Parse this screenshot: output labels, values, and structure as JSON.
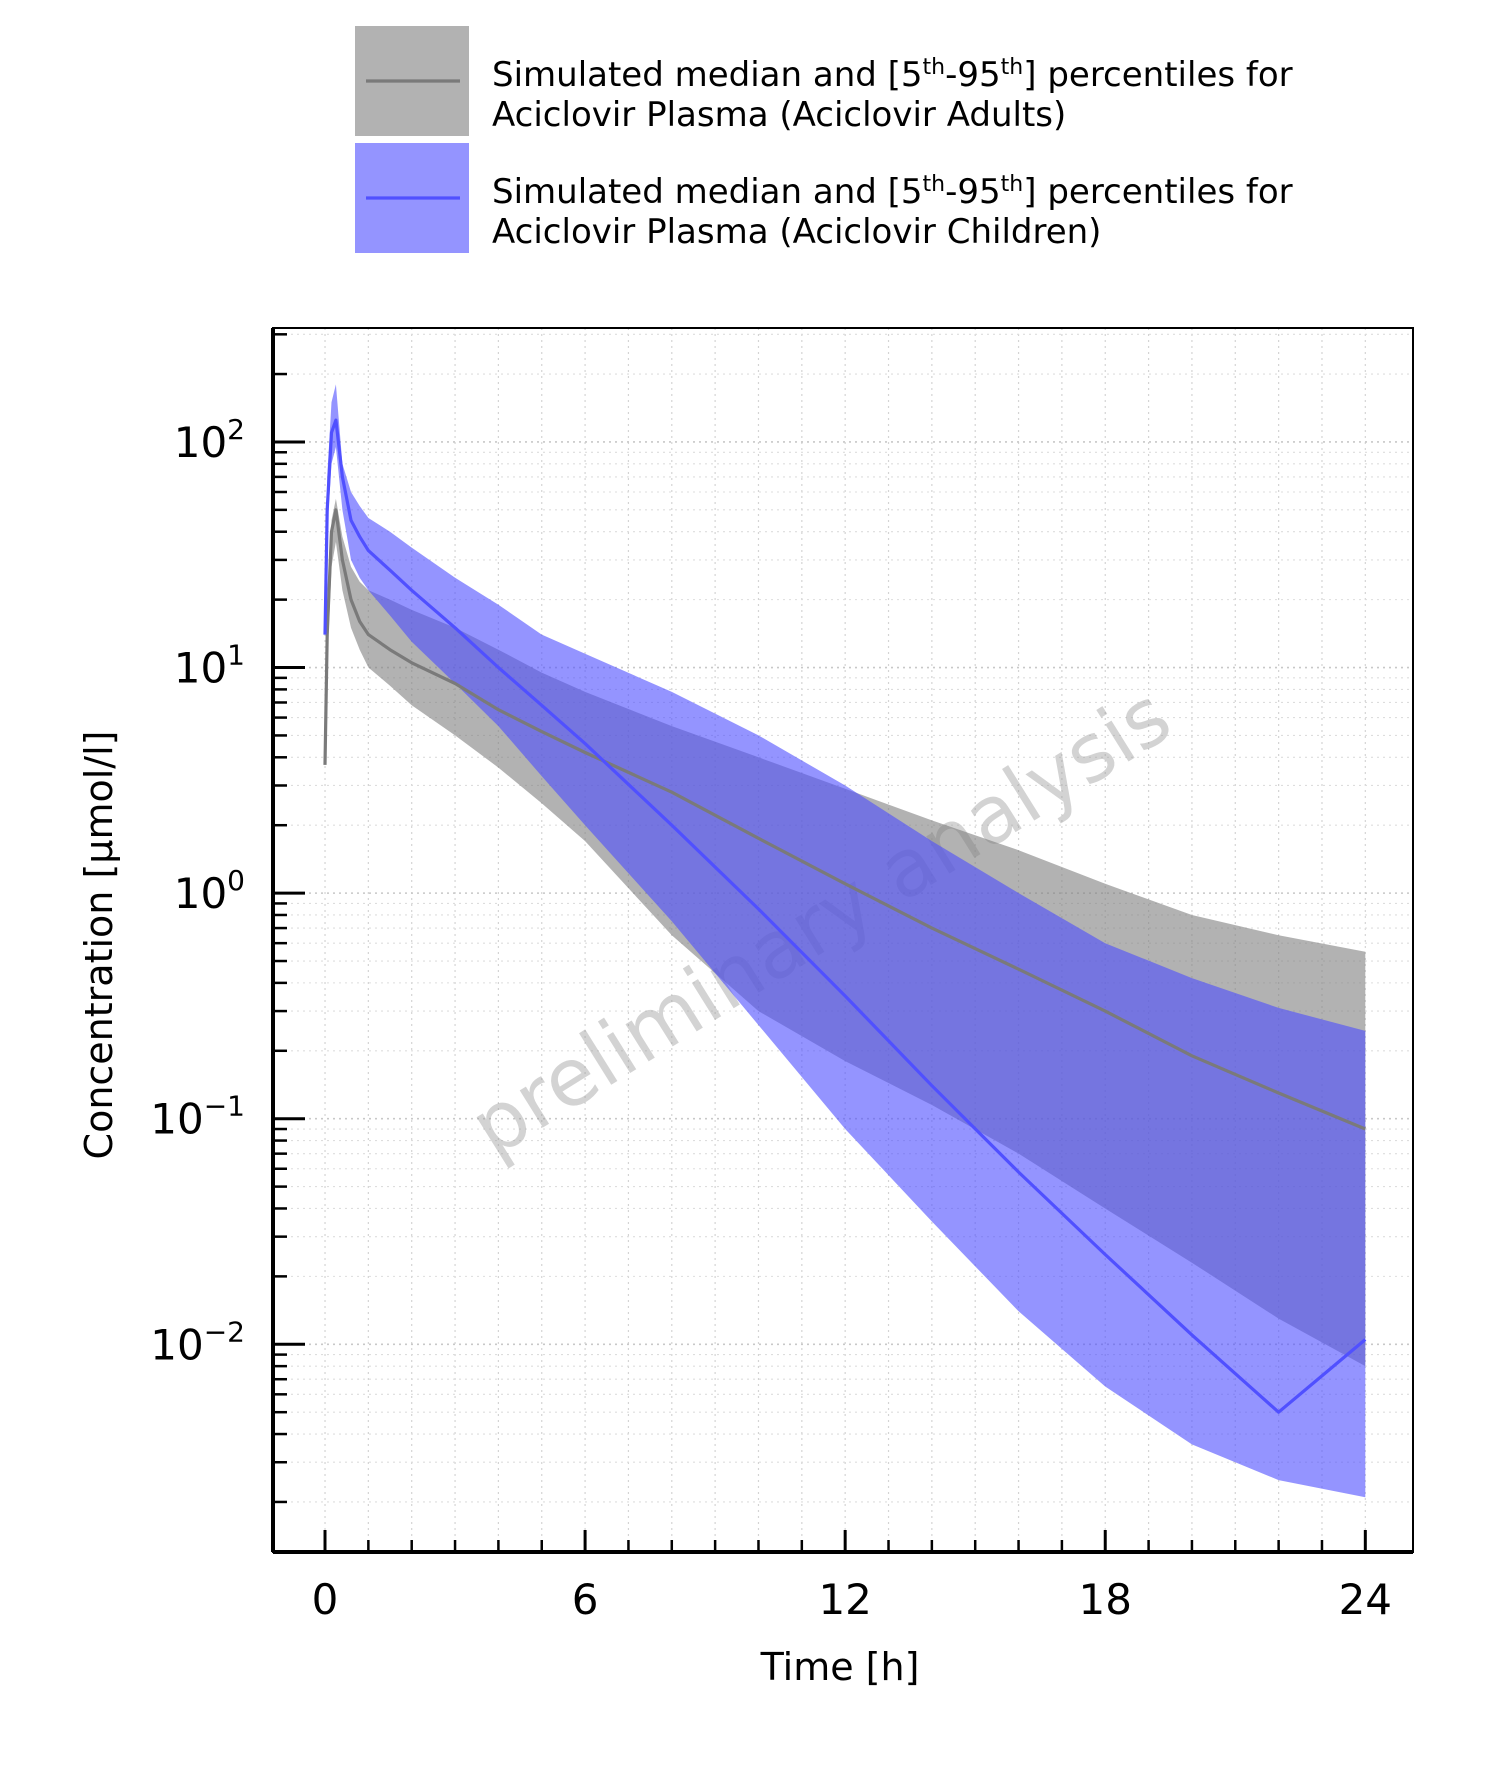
{
  "chart_data": {
    "type": "area",
    "xlabel": "Time [h]",
    "ylabel": "Concentration [µmol/l]",
    "watermark": "preliminary analysis",
    "yscale": "log",
    "xlim": [
      -1.2,
      25.1
    ],
    "ylim": [
      0.0012,
      320
    ],
    "xticks": [
      0,
      6,
      12,
      18,
      24
    ],
    "yticks": [
      {
        "value": 100,
        "base": "10",
        "exp": "2"
      },
      {
        "value": 10,
        "base": "10",
        "exp": "1"
      },
      {
        "value": 1,
        "base": "10",
        "exp": "0"
      },
      {
        "value": 0.1,
        "base": "10",
        "exp": "−1"
      },
      {
        "value": 0.01,
        "base": "10",
        "exp": "−2"
      }
    ],
    "grid": true,
    "legend_position": "top",
    "series": [
      {
        "name": "Simulated median and [5th-95th] percentiles for Aciclovir Plasma (Aciclovir Adults)",
        "legend_line1_a": "Simulated median and [5",
        "legend_line1_sup1": "th",
        "legend_line1_b": "-95",
        "legend_line1_sup2": "th",
        "legend_line1_c": "] percentiles for",
        "legend_line2": "Aciclovir Plasma (Aciclovir Adults)",
        "band_color": "#7f7f7f",
        "band_opacity": 0.6,
        "line_color": "#7a7a7a",
        "x": [
          0,
          0.05,
          0.15,
          0.25,
          0.4,
          0.6,
          0.8,
          1.0,
          1.5,
          2,
          3,
          4,
          5,
          6,
          8,
          10,
          12,
          14,
          16,
          18,
          20,
          22,
          24
        ],
        "median": [
          3.7,
          14,
          40,
          50,
          30,
          20,
          16,
          14,
          12,
          10.5,
          8.5,
          6.5,
          5.2,
          4.2,
          2.8,
          1.75,
          1.1,
          0.7,
          0.46,
          0.3,
          0.19,
          0.13,
          0.09
        ],
        "lower": [
          3.7,
          10,
          28,
          36,
          22,
          15,
          12,
          10,
          8.3,
          6.8,
          5.0,
          3.6,
          2.5,
          1.7,
          0.65,
          0.3,
          0.18,
          0.115,
          0.07,
          0.04,
          0.023,
          0.013,
          0.008
        ],
        "upper": [
          3.7,
          15,
          45,
          56,
          38,
          28,
          24,
          22,
          20,
          18,
          15,
          12,
          9.5,
          7.8,
          5.5,
          4.0,
          2.9,
          2.1,
          1.55,
          1.1,
          0.8,
          0.65,
          0.55
        ]
      },
      {
        "name": "Simulated median and [5th-95th] percentiles for Aciclovir Plasma (Aciclovir Children)",
        "legend_line1_a": "Simulated median and [5",
        "legend_line1_sup1": "th",
        "legend_line1_b": "-95",
        "legend_line1_sup2": "th",
        "legend_line1_c": "] percentiles for",
        "legend_line2": "Aciclovir Plasma (Aciclovir Children)",
        "band_color": "#4d4dff",
        "band_opacity": 0.6,
        "line_color": "#5050ff",
        "x": [
          0,
          0.05,
          0.15,
          0.25,
          0.4,
          0.6,
          0.8,
          1.0,
          1.5,
          2,
          3,
          4,
          5,
          6,
          8,
          10,
          12,
          14,
          16,
          18,
          20,
          22,
          24
        ],
        "median": [
          14,
          50,
          110,
          125,
          70,
          45,
          38,
          33,
          27,
          22,
          15,
          10,
          6.8,
          4.6,
          2.0,
          0.85,
          0.35,
          0.14,
          0.058,
          0.025,
          0.011,
          0.005,
          0.0105
        ],
        "lower": [
          14,
          40,
          80,
          95,
          50,
          30,
          25,
          22,
          17,
          13,
          8.5,
          5.5,
          3.3,
          2.0,
          0.75,
          0.26,
          0.09,
          0.035,
          0.014,
          0.0065,
          0.0036,
          0.0025,
          0.0021
        ],
        "upper": [
          14,
          70,
          150,
          180,
          80,
          60,
          52,
          46,
          40,
          34,
          25,
          19,
          14,
          11.5,
          7.8,
          5.0,
          3.0,
          1.7,
          1.0,
          0.6,
          0.42,
          0.31,
          0.245
        ]
      }
    ]
  }
}
